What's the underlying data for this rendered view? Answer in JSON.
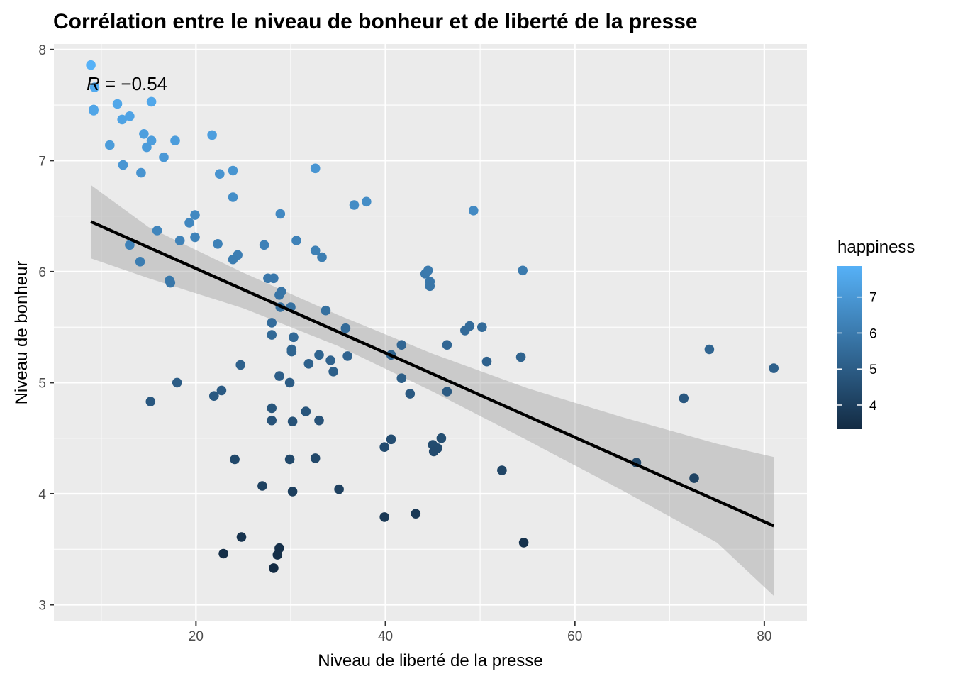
{
  "chart_data": {
    "type": "scatter",
    "title": "Corrélation entre le niveau de bonheur et de liberté de la presse",
    "xlabel": "Niveau de liberté de la presse",
    "ylabel": "Niveau de bonheur",
    "xlim": [
      5,
      84.5
    ],
    "ylim": [
      2.85,
      8.05
    ],
    "x_ticks": [
      20,
      40,
      60,
      80
    ],
    "y_ticks": [
      3,
      4,
      5,
      6,
      7,
      8
    ],
    "grid": true,
    "annotation": {
      "italic": "R",
      "rest": " = −0.54"
    },
    "legend": {
      "title": "happiness",
      "placement": "right",
      "ticks": [
        4,
        5,
        6,
        7
      ],
      "range": [
        3.33,
        7.86
      ],
      "color_low": "#132b43",
      "color_high": "#56b1f7"
    },
    "points": [
      [
        8.9,
        7.86
      ],
      [
        9.3,
        7.66
      ],
      [
        9.2,
        7.46
      ],
      [
        9.2,
        7.45
      ],
      [
        11.7,
        7.51
      ],
      [
        15.3,
        7.53
      ],
      [
        12.2,
        7.37
      ],
      [
        13.0,
        7.4
      ],
      [
        14.5,
        7.24
      ],
      [
        15.3,
        7.18
      ],
      [
        14.8,
        7.12
      ],
      [
        10.9,
        7.14
      ],
      [
        17.8,
        7.18
      ],
      [
        21.7,
        7.23
      ],
      [
        12.3,
        6.96
      ],
      [
        16.6,
        7.03
      ],
      [
        14.2,
        6.89
      ],
      [
        22.5,
        6.88
      ],
      [
        23.9,
        6.91
      ],
      [
        32.6,
        6.93
      ],
      [
        23.9,
        6.67
      ],
      [
        36.7,
        6.6
      ],
      [
        38.0,
        6.63
      ],
      [
        49.3,
        6.55
      ],
      [
        28.9,
        6.52
      ],
      [
        19.9,
        6.51
      ],
      [
        19.3,
        6.44
      ],
      [
        15.9,
        6.37
      ],
      [
        19.9,
        6.31
      ],
      [
        18.3,
        6.28
      ],
      [
        22.3,
        6.25
      ],
      [
        13.0,
        6.24
      ],
      [
        27.2,
        6.24
      ],
      [
        30.6,
        6.28
      ],
      [
        32.6,
        6.19
      ],
      [
        33.3,
        6.13
      ],
      [
        24.4,
        6.15
      ],
      [
        23.9,
        6.11
      ],
      [
        14.1,
        6.09
      ],
      [
        44.2,
        5.98
      ],
      [
        44.5,
        6.01
      ],
      [
        54.5,
        6.01
      ],
      [
        44.7,
        5.91
      ],
      [
        44.7,
        5.87
      ],
      [
        17.2,
        5.92
      ],
      [
        17.3,
        5.9
      ],
      [
        27.6,
        5.94
      ],
      [
        28.2,
        5.94
      ],
      [
        28.8,
        5.79
      ],
      [
        29.0,
        5.82
      ],
      [
        28.9,
        5.68
      ],
      [
        30.0,
        5.68
      ],
      [
        33.7,
        5.65
      ],
      [
        35.8,
        5.49
      ],
      [
        28.0,
        5.54
      ],
      [
        30.3,
        5.41
      ],
      [
        28.0,
        5.43
      ],
      [
        48.4,
        5.47
      ],
      [
        48.9,
        5.51
      ],
      [
        50.2,
        5.5
      ],
      [
        30.1,
        5.3
      ],
      [
        30.1,
        5.28
      ],
      [
        33.0,
        5.25
      ],
      [
        36.0,
        5.24
      ],
      [
        40.6,
        5.25
      ],
      [
        41.7,
        5.34
      ],
      [
        46.5,
        5.34
      ],
      [
        50.7,
        5.19
      ],
      [
        54.3,
        5.23
      ],
      [
        24.7,
        5.16
      ],
      [
        31.9,
        5.17
      ],
      [
        34.2,
        5.2
      ],
      [
        34.5,
        5.1
      ],
      [
        28.8,
        5.06
      ],
      [
        29.9,
        5.0
      ],
      [
        41.7,
        5.04
      ],
      [
        42.6,
        4.9
      ],
      [
        46.5,
        4.92
      ],
      [
        74.2,
        5.3
      ],
      [
        81.0,
        5.13
      ],
      [
        18.0,
        5.0
      ],
      [
        21.9,
        4.88
      ],
      [
        22.7,
        4.93
      ],
      [
        15.2,
        4.83
      ],
      [
        71.5,
        4.86
      ],
      [
        28.0,
        4.77
      ],
      [
        31.6,
        4.74
      ],
      [
        28.0,
        4.66
      ],
      [
        30.2,
        4.65
      ],
      [
        33.0,
        4.66
      ],
      [
        40.6,
        4.49
      ],
      [
        45.9,
        4.5
      ],
      [
        39.9,
        4.42
      ],
      [
        45.0,
        4.44
      ],
      [
        45.5,
        4.41
      ],
      [
        45.1,
        4.38
      ],
      [
        66.5,
        4.28
      ],
      [
        24.1,
        4.31
      ],
      [
        29.9,
        4.31
      ],
      [
        32.6,
        4.32
      ],
      [
        52.3,
        4.21
      ],
      [
        72.6,
        4.14
      ],
      [
        27.0,
        4.07
      ],
      [
        30.2,
        4.02
      ],
      [
        35.1,
        4.04
      ],
      [
        43.2,
        3.82
      ],
      [
        39.9,
        3.79
      ],
      [
        24.8,
        3.61
      ],
      [
        54.6,
        3.56
      ],
      [
        22.9,
        3.46
      ],
      [
        28.8,
        3.51
      ],
      [
        28.6,
        3.45
      ],
      [
        28.2,
        3.33
      ]
    ],
    "regression": {
      "x": [
        8.9,
        81.0
      ],
      "y": [
        6.45,
        3.71
      ]
    },
    "ribbon": {
      "x": [
        8.9,
        15,
        25,
        35,
        45,
        55,
        65,
        75,
        81
      ],
      "upper": [
        6.78,
        6.4,
        5.99,
        5.61,
        5.26,
        4.95,
        4.69,
        4.45,
        4.33
      ],
      "lower": [
        6.12,
        5.94,
        5.67,
        5.33,
        4.92,
        4.48,
        4.03,
        3.56,
        3.08
      ]
    }
  }
}
